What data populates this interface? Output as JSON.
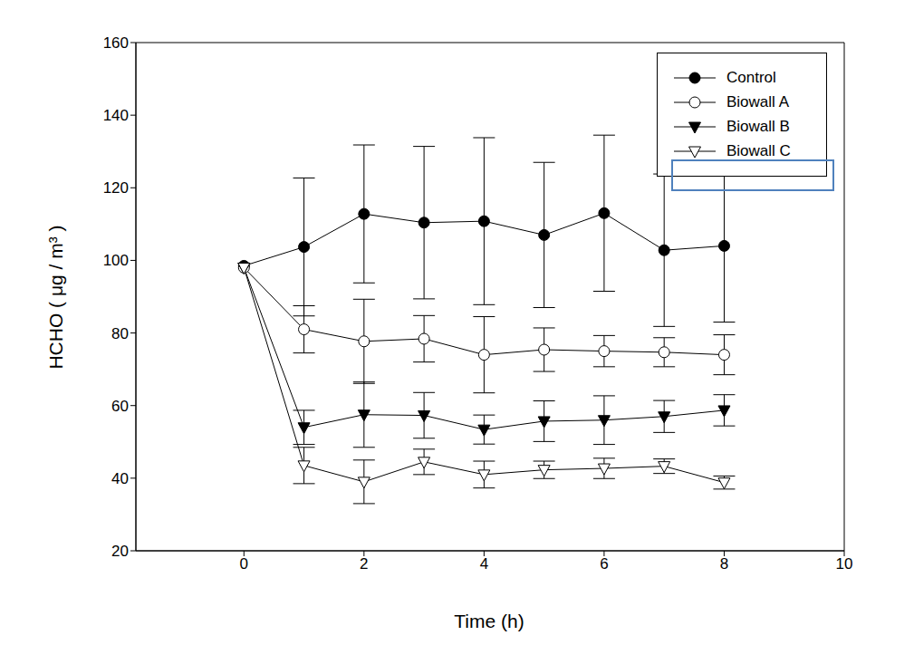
{
  "chart_data": {
    "type": "line",
    "x_label": "Time (h)",
    "y_label": "HCHO ( μg / m³ )",
    "x": [
      0,
      1,
      2,
      3,
      4,
      5,
      6,
      7,
      8
    ],
    "xlim": [
      -1.8,
      10
    ],
    "xticks": [
      0,
      2,
      4,
      6,
      8,
      10
    ],
    "ylim": [
      20,
      160
    ],
    "yticks": [
      20,
      40,
      60,
      80,
      100,
      120,
      140,
      160
    ],
    "legend": "upper right",
    "series": [
      {
        "name": "Control",
        "color": "#000000",
        "marker": "circle",
        "values": [
          98.5,
          103.7,
          112.8,
          110.4,
          110.8,
          107,
          113,
          102.8,
          104
        ],
        "errors": [
          null,
          19,
          19,
          21,
          23,
          20,
          21.5,
          21,
          21
        ]
      },
      {
        "name": "Biowall A",
        "color": "#000000",
        "marker": "circle-open",
        "values": [
          98,
          81,
          77.7,
          78.4,
          74,
          75.4,
          75,
          74.7,
          74
        ],
        "errors": [
          null,
          6.5,
          11.6,
          6.4,
          10.5,
          6,
          4.3,
          4,
          5.5
        ]
      },
      {
        "name": "Biowall B",
        "color": "#000000",
        "marker": "triangle-down",
        "values": [
          98,
          54,
          57.5,
          57.3,
          53.4,
          55.7,
          56,
          57,
          58.7
        ],
        "errors": [
          null,
          4.7,
          9,
          6.3,
          4,
          5.6,
          6.7,
          4.4,
          4.3
        ]
      },
      {
        "name": "Biowall C",
        "color": "#000000",
        "marker": "triangle-down-open",
        "values": [
          98,
          43.5,
          39,
          44.5,
          41,
          42.3,
          42.7,
          43.3,
          38.8
        ],
        "errors": [
          null,
          5,
          6,
          3.5,
          3.7,
          2.4,
          2.8,
          2,
          1.8
        ]
      }
    ]
  }
}
